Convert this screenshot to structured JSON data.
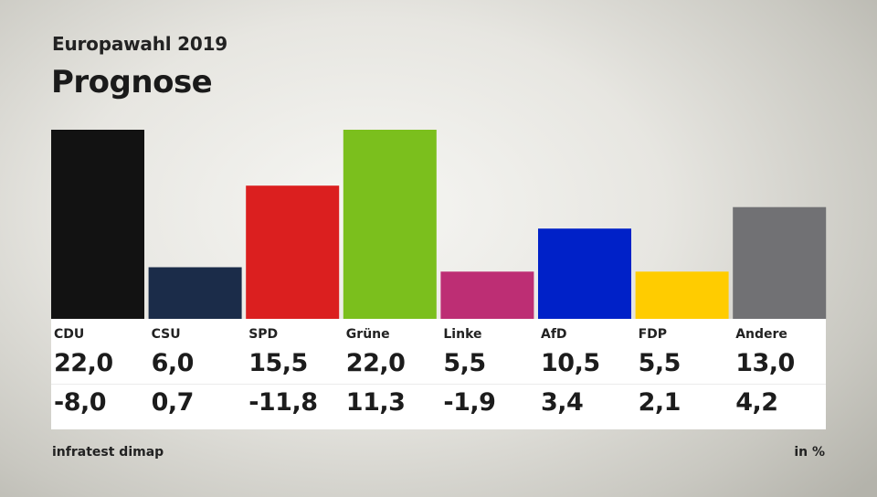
{
  "header": {
    "subtitle": "Europawahl 2019",
    "title": "Prognose"
  },
  "footer": {
    "source": "infratest dimap",
    "unit": "in %"
  },
  "chart_data": {
    "type": "bar",
    "title": "Prognose",
    "subtitle": "Europawahl 2019",
    "categories": [
      "CDU",
      "CSU",
      "SPD",
      "Grüne",
      "Linke",
      "AfD",
      "FDP",
      "Andere"
    ],
    "values": [
      22.0,
      6.0,
      15.5,
      22.0,
      5.5,
      10.5,
      5.5,
      13.0
    ],
    "value_labels": [
      "22,0",
      "6,0",
      "15,5",
      "22,0",
      "5,5",
      "10,5",
      "5,5",
      "13,0"
    ],
    "diff_values": [
      -8.0,
      0.7,
      -11.8,
      11.3,
      -1.9,
      3.4,
      2.1,
      4.2
    ],
    "diff_labels": [
      "-8,0",
      "0,7",
      "-11,8",
      "11,3",
      "-1,9",
      "3,4",
      "2,1",
      "4,2"
    ],
    "colors": [
      "#121212",
      "#1b2c49",
      "#db1f1f",
      "#7bbf1d",
      "#bd2e74",
      "#0021c8",
      "#ffcc00",
      "#717174"
    ],
    "ylim": [
      0,
      22
    ],
    "grid": false,
    "legend": "none",
    "unit": "in %"
  }
}
